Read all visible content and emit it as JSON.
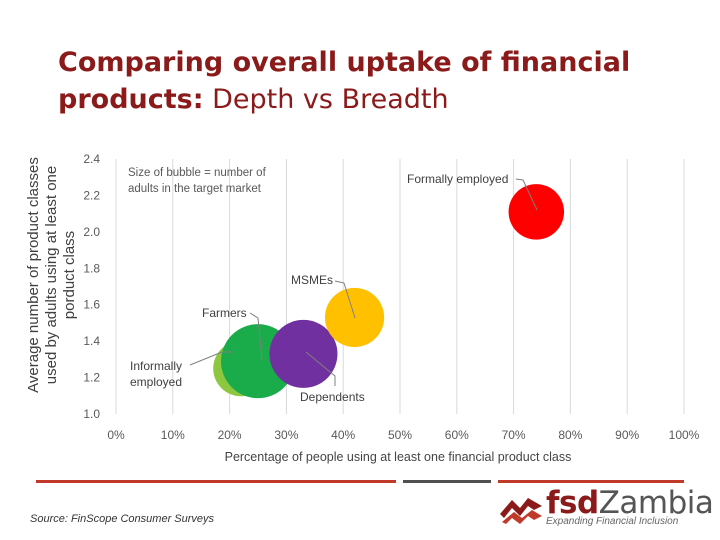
{
  "title": {
    "bold_part": "Comparing overall uptake of financial products:",
    "normal_part": " Depth vs Breadth"
  },
  "chart_data": {
    "type": "scatter",
    "title": "Comparing overall uptake of financial products: Depth vs Breadth",
    "xlabel": "Percentage of people using at least one financial product class",
    "ylabel_lines": [
      "Average number of product classes",
      "used by adults using at least one",
      "porduct class"
    ],
    "xlim": [
      0,
      100
    ],
    "ylim": [
      1.0,
      2.4
    ],
    "x_ticks": [
      "0%",
      "10%",
      "20%",
      "30%",
      "40%",
      "50%",
      "60%",
      "70%",
      "80%",
      "90%",
      "100%"
    ],
    "y_ticks": [
      "1.0",
      "1.2",
      "1.4",
      "1.6",
      "1.8",
      "2.0",
      "2.2",
      "2.4"
    ],
    "grid": "vertical",
    "note_lines": [
      "Size of bubble = number of",
      "adults in the target market"
    ],
    "series": [
      {
        "name": "Informally employed",
        "label_lines": [
          "Informally",
          "employed"
        ],
        "x": 22,
        "y": 1.25,
        "size": 0.75,
        "color": "#8dc63f"
      },
      {
        "name": "Farmers",
        "label_lines": [
          "Farmers"
        ],
        "x": 25,
        "y": 1.29,
        "size": 1.0,
        "color": "#1aab4b"
      },
      {
        "name": "Dependents",
        "label_lines": [
          "Dependents"
        ],
        "x": 33,
        "y": 1.33,
        "size": 0.92,
        "color": "#7030a0"
      },
      {
        "name": "MSMEs",
        "label_lines": [
          "MSMEs"
        ],
        "x": 42,
        "y": 1.53,
        "size": 0.8,
        "color": "#ffc000"
      },
      {
        "name": "Formally employed",
        "label_lines": [
          "Formally employed"
        ],
        "x": 74,
        "y": 2.11,
        "size": 0.75,
        "color": "#ff0000"
      }
    ]
  },
  "footer": {
    "source": "Source: FinScope Consumer Surveys",
    "logo_fsd": "fsd",
    "logo_zambia": "Zambia",
    "logo_tagline": "Expanding Financial Inclusion"
  }
}
